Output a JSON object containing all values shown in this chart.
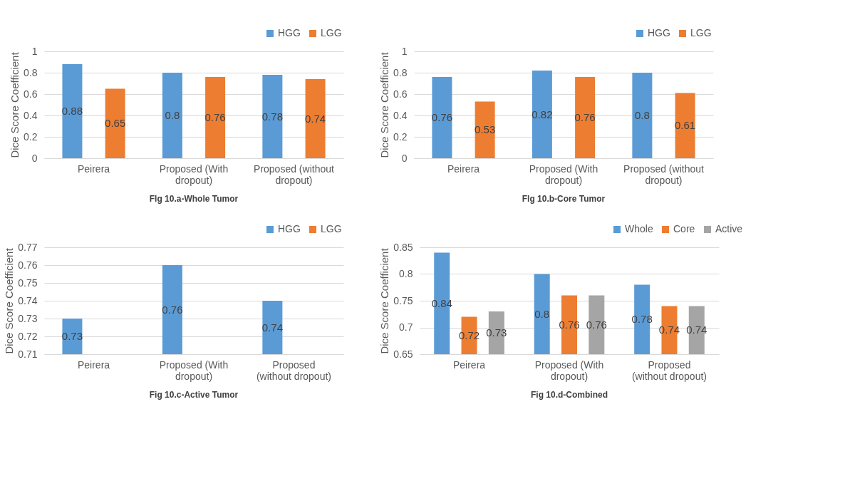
{
  "chart_data": [
    {
      "type": "bar",
      "title": "Flg 10.a-Whole Tumor",
      "ylabel": "Dice Score Coefficient",
      "categories": [
        "Peirera",
        "Proposed (With\ndropout)",
        "Proposed (without\ndropout)"
      ],
      "series": [
        {
          "name": "HGG",
          "color": "#5b9bd5",
          "values": [
            0.88,
            0.8,
            0.78
          ]
        },
        {
          "name": "LGG",
          "color": "#ed7d31",
          "values": [
            0.65,
            0.76,
            0.74
          ]
        }
      ],
      "ylim": [
        0,
        1
      ],
      "yticks": [
        0,
        0.2,
        0.4,
        0.6,
        0.8,
        1
      ],
      "grid": "y",
      "legend": "top right",
      "data_labels": true
    },
    {
      "type": "bar",
      "title": "Flg 10.b-Core Tumor",
      "ylabel": "Dice Score Coefficient",
      "categories": [
        "Peirera",
        "Proposed (With\ndropout)",
        "Proposed (without\ndropout)"
      ],
      "series": [
        {
          "name": "HGG",
          "color": "#5b9bd5",
          "values": [
            0.76,
            0.82,
            0.8
          ]
        },
        {
          "name": "LGG",
          "color": "#ed7d31",
          "values": [
            0.53,
            0.76,
            0.61
          ]
        }
      ],
      "ylim": [
        0,
        1
      ],
      "yticks": [
        0,
        0.2,
        0.4,
        0.6,
        0.8,
        1
      ],
      "grid": "y",
      "legend": "top right",
      "data_labels": true
    },
    {
      "type": "bar",
      "title": "Fig 10.c-Active Tumor",
      "ylabel": "Dice Score Coefficient",
      "categories": [
        "Peirera",
        "Proposed (With\ndropout)",
        "Proposed\n(without dropout)"
      ],
      "series": [
        {
          "name": "HGG",
          "color": "#5b9bd5",
          "values": [
            0.73,
            0.76,
            0.74
          ]
        },
        {
          "name": "LGG",
          "color": "#ed7d31",
          "values": [
            null,
            null,
            null
          ]
        }
      ],
      "ylim": [
        0.71,
        0.77
      ],
      "yticks": [
        0.71,
        0.72,
        0.73,
        0.74,
        0.75,
        0.76,
        0.77
      ],
      "grid": "y",
      "legend": "top right",
      "data_labels": true
    },
    {
      "type": "bar",
      "title": "Fig 10.d-Combined",
      "ylabel": "Dice Score Coefficient",
      "categories": [
        "Peirera",
        "Proposed (With\ndropout)",
        "Proposed\n(without dropout)"
      ],
      "series": [
        {
          "name": "Whole",
          "color": "#5b9bd5",
          "values": [
            0.84,
            0.8,
            0.78
          ]
        },
        {
          "name": "Core",
          "color": "#ed7d31",
          "values": [
            0.72,
            0.76,
            0.74
          ]
        },
        {
          "name": "Active",
          "color": "#a5a5a5",
          "values": [
            0.73,
            0.76,
            0.74
          ]
        }
      ],
      "ylim": [
        0.65,
        0.85
      ],
      "yticks": [
        0.65,
        0.7,
        0.75,
        0.8,
        0.85
      ],
      "grid": "y",
      "legend": "top right",
      "data_labels": true
    }
  ]
}
